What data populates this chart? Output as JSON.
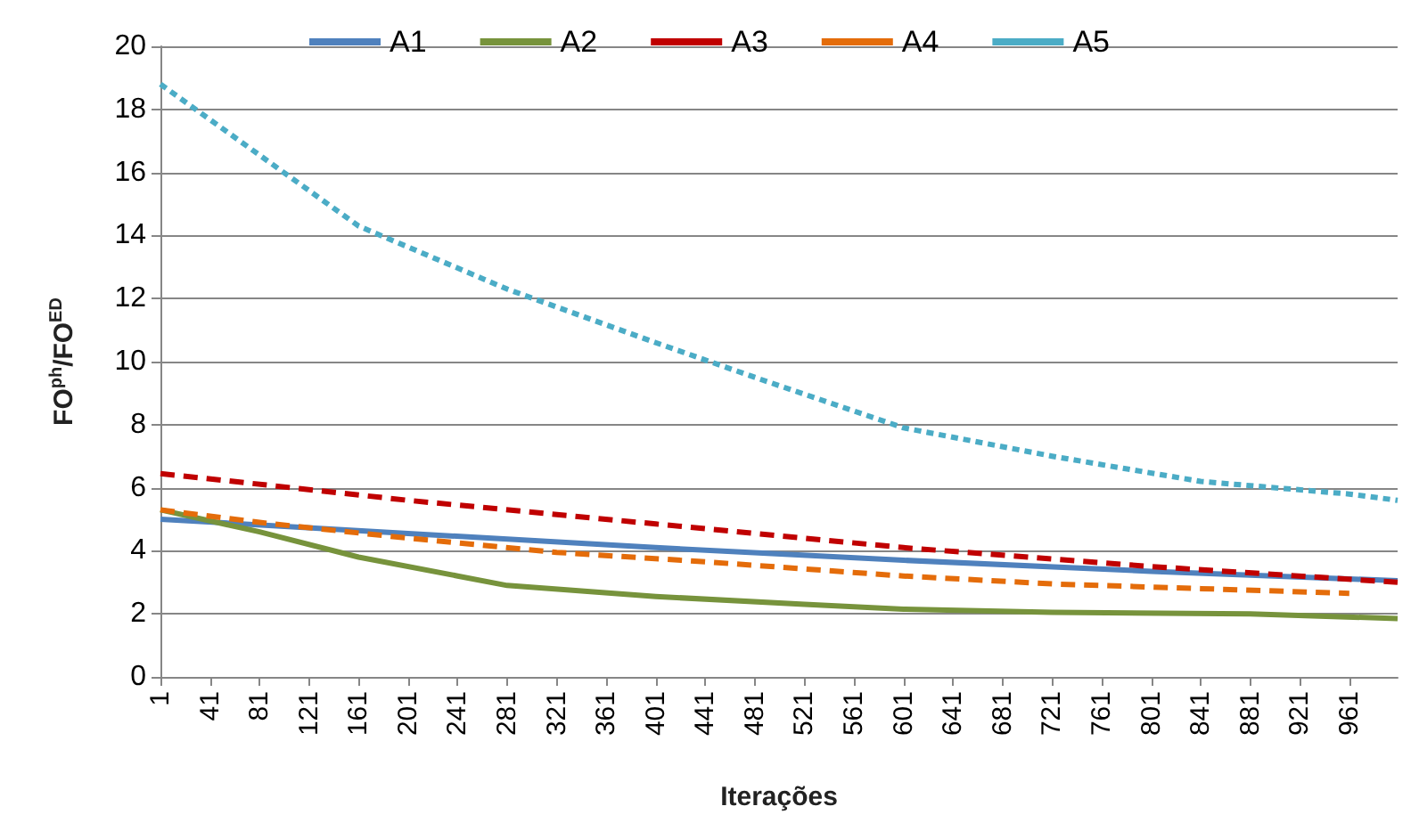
{
  "chart_data": {
    "type": "line",
    "xlabel": "Iterações",
    "ylabel": "FO$^{ph}$/FO$^{ED}$",
    "xlim": [
      1,
      1000
    ],
    "xticks": [
      1,
      41,
      81,
      121,
      161,
      201,
      241,
      281,
      321,
      361,
      401,
      441,
      481,
      521,
      561,
      601,
      641,
      681,
      721,
      761,
      801,
      841,
      881,
      921,
      961
    ],
    "ylim": [
      0,
      20
    ],
    "yticks": [
      0,
      2,
      4,
      6,
      8,
      10,
      12,
      14,
      16,
      18,
      20
    ],
    "grid": "y",
    "legend": "top",
    "marker": "none",
    "series": [
      {
        "name": "A1",
        "color": "#4f81bd",
        "line_style": "solid",
        "x": [
          1,
          201,
          401,
          601,
          801,
          1000
        ],
        "values": [
          5.0,
          4.55,
          4.1,
          3.7,
          3.35,
          3.05
        ]
      },
      {
        "name": "A2",
        "color": "#77933c",
        "line_style": "solid",
        "x": [
          1,
          81,
          161,
          241,
          281,
          401,
          521,
          601,
          721,
          881,
          1000
        ],
        "values": [
          5.3,
          4.6,
          3.8,
          3.2,
          2.9,
          2.55,
          2.3,
          2.15,
          2.05,
          2.0,
          1.85
        ]
      },
      {
        "name": "A3",
        "color": "#c00000",
        "line_style": "dashed",
        "x": [
          1,
          201,
          401,
          601,
          801,
          1000
        ],
        "values": [
          6.45,
          5.6,
          4.85,
          4.1,
          3.5,
          3.0
        ]
      },
      {
        "name": "A4",
        "color": "#e46c0a",
        "line_style": "dashed",
        "x": [
          1,
          81,
          201,
          321,
          441,
          601,
          721,
          841,
          961
        ],
        "values": [
          5.3,
          4.9,
          4.4,
          3.95,
          3.65,
          3.2,
          2.95,
          2.8,
          2.65
        ]
      },
      {
        "name": "A5",
        "color": "#4bacc6",
        "line_style": "dotted",
        "x": [
          1,
          161,
          281,
          401,
          481,
          601,
          721,
          841,
          961,
          1000
        ],
        "values": [
          18.8,
          14.3,
          12.3,
          10.6,
          9.5,
          7.9,
          7.0,
          6.2,
          5.8,
          5.6
        ]
      }
    ]
  }
}
